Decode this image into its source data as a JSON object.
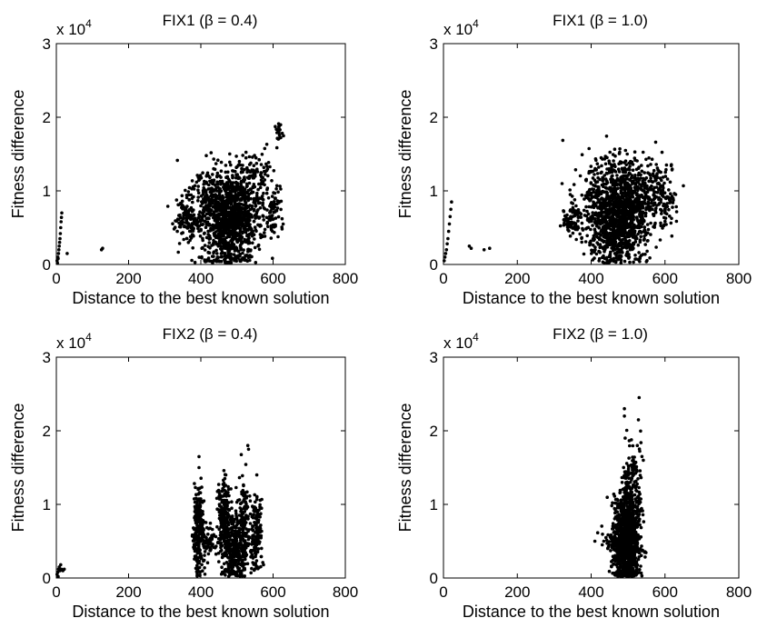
{
  "chart_data": [
    {
      "type": "scatter",
      "title": "FIX1 (β = 0.4)",
      "xlabel": "Distance to the best known solution",
      "ylabel": "Fitness difference",
      "xlim": [
        0,
        800
      ],
      "ylim": [
        0,
        3
      ],
      "xticks": [
        "0",
        "200",
        "400",
        "600",
        "800"
      ],
      "yticks": [
        "0",
        "1",
        "2",
        "3"
      ],
      "yscale_label": "x 10",
      "yscale_exp": "4",
      "marker_color": "#000000",
      "points": [
        {
          "x": 2,
          "y": 0.05
        },
        {
          "x": 4,
          "y": 0.1
        },
        {
          "x": 6,
          "y": 0.15
        },
        {
          "x": 7,
          "y": 0.2
        },
        {
          "x": 8,
          "y": 0.25
        },
        {
          "x": 9,
          "y": 0.3
        },
        {
          "x": 10,
          "y": 0.35
        },
        {
          "x": 11,
          "y": 0.42
        },
        {
          "x": 12,
          "y": 0.5
        },
        {
          "x": 13,
          "y": 0.58
        },
        {
          "x": 14,
          "y": 0.64
        },
        {
          "x": 15,
          "y": 0.7
        },
        {
          "x": 3,
          "y": 0.02
        },
        {
          "x": 5,
          "y": 0.08
        },
        {
          "x": 30,
          "y": 0.15
        },
        {
          "x": 125,
          "y": 0.2
        },
        {
          "x": 128,
          "y": 0.22
        }
      ],
      "clusters": [
        {
          "cx": 480,
          "cy": 0.55,
          "sx": 40,
          "sy": 0.3,
          "n": 900
        },
        {
          "cx": 450,
          "cy": 0.9,
          "sx": 45,
          "sy": 0.25,
          "n": 250
        },
        {
          "cx": 520,
          "cy": 0.9,
          "sx": 30,
          "sy": 0.25,
          "n": 200
        },
        {
          "cx": 360,
          "cy": 0.6,
          "sx": 20,
          "sy": 0.15,
          "n": 120
        },
        {
          "cx": 600,
          "cy": 0.75,
          "sx": 15,
          "sy": 0.2,
          "n": 80
        },
        {
          "cx": 615,
          "cy": 1.8,
          "sx": 5,
          "sy": 0.07,
          "n": 20
        },
        {
          "cx": 560,
          "cy": 1.35,
          "sx": 20,
          "sy": 0.15,
          "n": 40
        }
      ]
    },
    {
      "type": "scatter",
      "title": "FIX1 (β = 1.0)",
      "xlabel": "Distance to the best known solution",
      "ylabel": "Fitness difference",
      "xlim": [
        0,
        800
      ],
      "ylim": [
        0,
        3
      ],
      "xticks": [
        "0",
        "200",
        "400",
        "600",
        "800"
      ],
      "yticks": [
        "0",
        "1",
        "2",
        "3"
      ],
      "yscale_label": "x 10",
      "yscale_exp": "4",
      "marker_color": "#000000",
      "points": [
        {
          "x": 2,
          "y": 0.05
        },
        {
          "x": 4,
          "y": 0.1
        },
        {
          "x": 6,
          "y": 0.15
        },
        {
          "x": 8,
          "y": 0.2
        },
        {
          "x": 10,
          "y": 0.28
        },
        {
          "x": 12,
          "y": 0.35
        },
        {
          "x": 14,
          "y": 0.45
        },
        {
          "x": 16,
          "y": 0.55
        },
        {
          "x": 18,
          "y": 0.65
        },
        {
          "x": 20,
          "y": 0.75
        },
        {
          "x": 22,
          "y": 0.85
        },
        {
          "x": 70,
          "y": 0.25
        },
        {
          "x": 75,
          "y": 0.22
        },
        {
          "x": 110,
          "y": 0.2
        },
        {
          "x": 125,
          "y": 0.22
        }
      ],
      "clusters": [
        {
          "cx": 470,
          "cy": 0.55,
          "sx": 40,
          "sy": 0.3,
          "n": 900
        },
        {
          "cx": 440,
          "cy": 0.95,
          "sx": 40,
          "sy": 0.25,
          "n": 220
        },
        {
          "cx": 520,
          "cy": 0.85,
          "sx": 30,
          "sy": 0.25,
          "n": 200
        },
        {
          "cx": 350,
          "cy": 0.6,
          "sx": 15,
          "sy": 0.1,
          "n": 80
        },
        {
          "cx": 580,
          "cy": 1.0,
          "sx": 25,
          "sy": 0.25,
          "n": 120
        },
        {
          "cx": 610,
          "cy": 0.8,
          "sx": 10,
          "sy": 0.15,
          "n": 40
        },
        {
          "cx": 475,
          "cy": 1.3,
          "sx": 35,
          "sy": 0.15,
          "n": 60
        }
      ]
    },
    {
      "type": "scatter",
      "title": "FIX2 (β = 0.4)",
      "xlabel": "Distance to the best known solution",
      "ylabel": "Fitness difference",
      "xlim": [
        0,
        800
      ],
      "ylim": [
        0,
        3
      ],
      "xticks": [
        "0",
        "200",
        "400",
        "600",
        "800"
      ],
      "yticks": [
        "0",
        "1",
        "2",
        "3"
      ],
      "yscale_label": "x 10",
      "yscale_exp": "4",
      "marker_color": "#000000",
      "points": [
        {
          "x": 2,
          "y": 0.05
        },
        {
          "x": 4,
          "y": 0.08
        },
        {
          "x": 6,
          "y": 0.12
        },
        {
          "x": 8,
          "y": 0.15
        },
        {
          "x": 10,
          "y": 0.1
        },
        {
          "x": 12,
          "y": 0.18
        },
        {
          "x": 14,
          "y": 0.12
        },
        {
          "x": 18,
          "y": 0.1
        },
        {
          "x": 22,
          "y": 0.12
        },
        {
          "x": 5,
          "y": 0.02
        },
        {
          "x": 395,
          "y": 1.65
        },
        {
          "x": 395,
          "y": 1.5
        },
        {
          "x": 530,
          "y": 1.8
        },
        {
          "x": 532,
          "y": 1.75
        },
        {
          "x": 555,
          "y": 1.4
        }
      ],
      "clusters": [
        {
          "cx": 395,
          "cy": 0.65,
          "sx": 8,
          "sy": 0.3,
          "n": 250
        },
        {
          "cx": 420,
          "cy": 0.5,
          "sx": 12,
          "sy": 0.08,
          "n": 60
        },
        {
          "cx": 465,
          "cy": 0.8,
          "sx": 8,
          "sy": 0.25,
          "n": 200
        },
        {
          "cx": 490,
          "cy": 0.35,
          "sx": 15,
          "sy": 0.25,
          "n": 300
        },
        {
          "cx": 520,
          "cy": 0.7,
          "sx": 8,
          "sy": 0.3,
          "n": 150
        },
        {
          "cx": 555,
          "cy": 0.55,
          "sx": 8,
          "sy": 0.25,
          "n": 150
        }
      ]
    },
    {
      "type": "scatter",
      "title": "FIX2 (β = 1.0)",
      "xlabel": "Distance to the best known solution",
      "ylabel": "Fitness difference",
      "xlim": [
        0,
        800
      ],
      "ylim": [
        0,
        3
      ],
      "xticks": [
        "0",
        "200",
        "400",
        "600",
        "800"
      ],
      "yticks": [
        "0",
        "1",
        "2",
        "3"
      ],
      "yscale_label": "x 10",
      "yscale_exp": "4",
      "marker_color": "#000000",
      "points": [
        {
          "x": 410,
          "y": 0.5
        },
        {
          "x": 430,
          "y": 0.45
        },
        {
          "x": 440,
          "y": 0.55
        },
        {
          "x": 445,
          "y": 0.4
        },
        {
          "x": 490,
          "y": 2.3
        },
        {
          "x": 490,
          "y": 2.2
        },
        {
          "x": 530,
          "y": 2.45
        },
        {
          "x": 528,
          "y": 2.15
        },
        {
          "x": 492,
          "y": 1.9
        },
        {
          "x": 525,
          "y": 1.8
        }
      ],
      "clusters": [
        {
          "cx": 495,
          "cy": 0.45,
          "sx": 18,
          "sy": 0.3,
          "n": 900
        },
        {
          "cx": 500,
          "cy": 0.9,
          "sx": 15,
          "sy": 0.3,
          "n": 250
        },
        {
          "cx": 515,
          "cy": 1.3,
          "sx": 12,
          "sy": 0.3,
          "n": 80
        },
        {
          "cx": 460,
          "cy": 0.5,
          "sx": 15,
          "sy": 0.08,
          "n": 40
        }
      ]
    }
  ]
}
